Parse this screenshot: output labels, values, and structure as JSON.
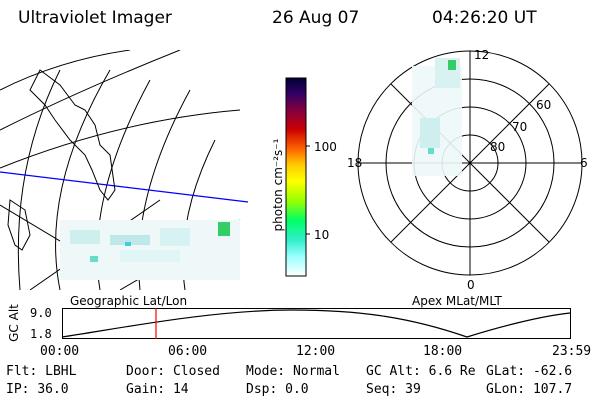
{
  "header": {
    "title": "Ultraviolet Imager",
    "date": "26 Aug 07",
    "time": "04:26:20 UT"
  },
  "geo_panel": {
    "label": "Geographic Lat/Lon"
  },
  "polar_panel": {
    "label": "Apex MLat/MLT",
    "mlt_labels": {
      "top": "12",
      "left": "18",
      "right": "6",
      "bottom": "0"
    },
    "lat_labels": [
      "60",
      "70",
      "80"
    ]
  },
  "colorbar": {
    "unit_label": "photon cm⁻²s⁻¹",
    "ticks": [
      "100",
      "10"
    ],
    "colors": [
      "#000033",
      "#330066",
      "#660066",
      "#990033",
      "#cc0000",
      "#ff3300",
      "#ff9900",
      "#ffcc00",
      "#ffff00",
      "#ccff00",
      "#66ff00",
      "#00ff66",
      "#00ffcc",
      "#66ffff",
      "#ccffff",
      "#ffffff"
    ]
  },
  "altitude_plot": {
    "ylabel": "GC Alt",
    "yticks": [
      "9.0",
      "1.8"
    ],
    "xticks": [
      "00:00",
      "06:00",
      "12:00",
      "18:00",
      "23:59"
    ],
    "marker_hour": 4.44
  },
  "footer": {
    "row1": [
      {
        "label": "Flt:",
        "value": "LBHL"
      },
      {
        "label": "Door:",
        "value": "Closed"
      },
      {
        "label": "Mode:",
        "value": "Normal"
      },
      {
        "label": "GC Alt:",
        "value": "6.6 Re"
      },
      {
        "label": "GLat:",
        "value": "-62.6"
      }
    ],
    "row2": [
      {
        "label": "IP:",
        "value": "36.0"
      },
      {
        "label": "Gain:",
        "value": "14"
      },
      {
        "label": "Dsp:",
        "value": "0.0"
      },
      {
        "label": "Seq:",
        "value": "39"
      },
      {
        "label": "GLon:",
        "value": "107.7"
      }
    ]
  }
}
